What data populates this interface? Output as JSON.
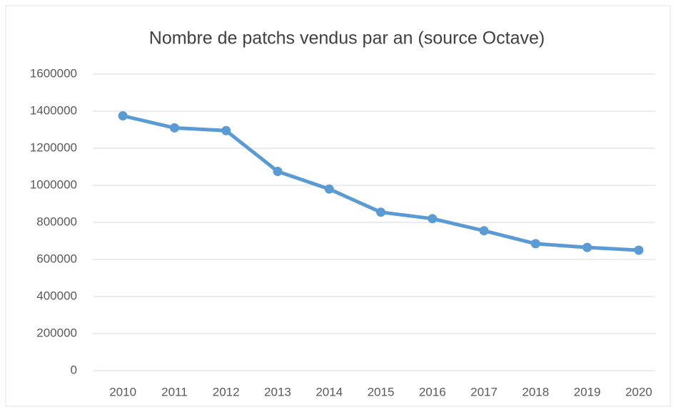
{
  "chart_data": {
    "type": "line",
    "title": "Nombre de patchs vendus par an (source Octave)",
    "categories": [
      "2010",
      "2011",
      "2012",
      "2013",
      "2014",
      "2015",
      "2016",
      "2017",
      "2018",
      "2019",
      "2020"
    ],
    "values": [
      1375000,
      1310000,
      1295000,
      1075000,
      980000,
      855000,
      820000,
      755000,
      685000,
      665000,
      650000
    ],
    "color": "#5b9bd5",
    "ylim": [
      0,
      1600000
    ],
    "yticks": [
      0,
      200000,
      400000,
      600000,
      800000,
      1000000,
      1200000,
      1400000,
      1600000
    ],
    "grid": true
  }
}
